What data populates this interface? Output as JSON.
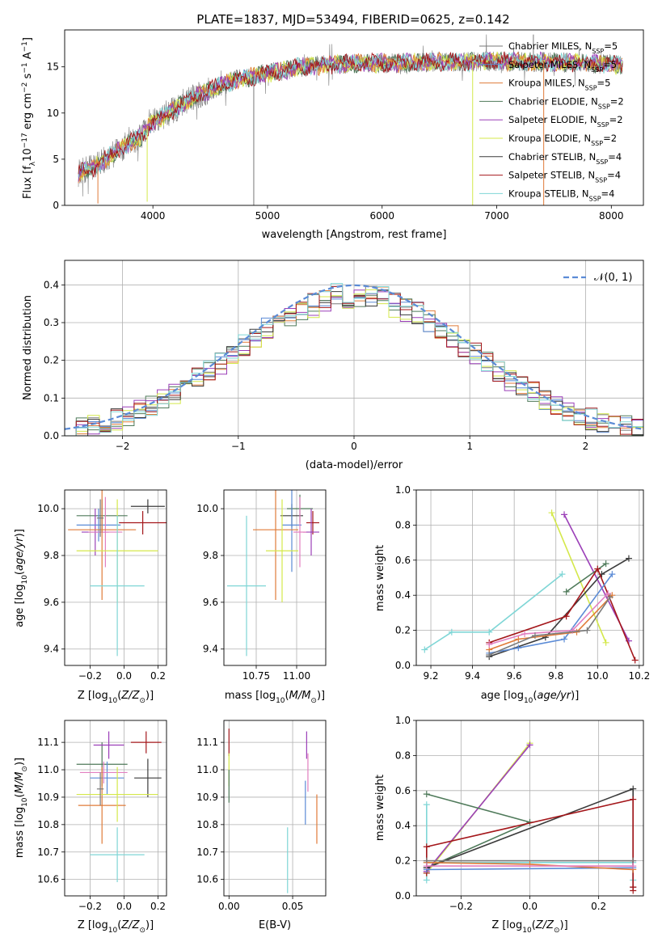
{
  "page_title": "PLATE=1837, MJD=53494, FIBERID=0625, z=0.142",
  "colors": {
    "c0": "#7a7a7a",
    "c1": "#5b8bd6",
    "c2": "#e07b39",
    "c3": "#4f7a5a",
    "c4": "#9b3fb8",
    "c5": "#d4e84a",
    "c6": "#3b3b3b",
    "c7": "#a4171b",
    "c8": "#7fd6d6",
    "c9": "#e27fc0",
    "norm": "#5b8bd6"
  },
  "legend_spectrum": [
    {
      "label": "Chabrier MILES, N",
      "sub": "SSP",
      "suffix": "=5",
      "color_key": "c0"
    },
    {
      "label": "Salpeter MILES, N",
      "sub": "SSP",
      "suffix": "=5",
      "color_key": "c1"
    },
    {
      "label": "Kroupa MILES, N",
      "sub": "SSP",
      "suffix": "=5",
      "color_key": "c2"
    },
    {
      "label": "Chabrier ELODIE, N",
      "sub": "SSP",
      "suffix": "=2",
      "color_key": "c3"
    },
    {
      "label": "Salpeter ELODIE, N",
      "sub": "SSP",
      "suffix": "=2",
      "color_key": "c4"
    },
    {
      "label": "Kroupa ELODIE, N",
      "sub": "SSP",
      "suffix": "=2",
      "color_key": "c5"
    },
    {
      "label": "Chabrier STELIB, N",
      "sub": "SSP",
      "suffix": "=4",
      "color_key": "c6"
    },
    {
      "label": "Salpeter STELIB, N",
      "sub": "SSP",
      "suffix": "=4",
      "color_key": "c7"
    },
    {
      "label": "Kroupa STELIB, N",
      "sub": "SSP",
      "suffix": "=4",
      "color_key": "c8"
    }
  ],
  "legend_hist": {
    "label": "𝒩(0, 1)"
  },
  "chart_data": [
    {
      "id": "spectrum",
      "type": "line",
      "xlabel": "wavelength [Angstrom, rest frame]",
      "ylabel": "Flux [f",
      "ylabel_parts": [
        "Flux [f",
        "λ",
        "10",
        "−17",
        " erg cm",
        "−2",
        " s",
        "−1",
        " A",
        "−1",
        "]"
      ],
      "xlim": [
        3230,
        8280
      ],
      "ylim": [
        0,
        19
      ],
      "xticks": [
        4000,
        5000,
        6000,
        7000,
        8000
      ],
      "yticks": [
        0,
        5,
        10,
        15
      ],
      "continuum": [
        [
          3350,
          3.5
        ],
        [
          3500,
          4.2
        ],
        [
          3700,
          6.0
        ],
        [
          3900,
          7.5
        ],
        [
          4000,
          9.0
        ],
        [
          4200,
          10.5
        ],
        [
          4400,
          12.0
        ],
        [
          4700,
          13.5
        ],
        [
          5000,
          14.3
        ],
        [
          5300,
          15.0
        ],
        [
          5600,
          15.3
        ],
        [
          6000,
          15.4
        ],
        [
          6500,
          15.5
        ],
        [
          7000,
          15.6
        ],
        [
          7500,
          15.5
        ],
        [
          8000,
          15.3
        ],
        [
          8100,
          15.2
        ]
      ],
      "spikes": [
        [
          3520,
          0.2
        ],
        [
          3950,
          0.4
        ],
        [
          4880,
          0.0
        ],
        [
          6790,
          0.0
        ],
        [
          7410,
          0.0
        ],
        [
          7320,
          18.5
        ]
      ]
    },
    {
      "id": "residuals",
      "type": "line",
      "xlabel": "(data-model)/error",
      "ylabel": "Normed distribution",
      "xlim": [
        -2.5,
        2.5
      ],
      "ylim": [
        0,
        0.465
      ],
      "xticks": [
        -2,
        -1,
        0,
        1,
        2
      ],
      "xticklabels": [
        "−2",
        "−1",
        "0",
        "1",
        "2"
      ],
      "yticks": [
        0.0,
        0.1,
        0.2,
        0.3,
        0.4
      ],
      "yticklabels": [
        "0.0",
        "0.1",
        "0.2",
        "0.3",
        "0.4"
      ],
      "bin_width": 0.1,
      "series_name": "𝒩(0, 1)"
    },
    {
      "id": "age_vs_Z",
      "type": "scatter",
      "xlabel": "Z [log10(Z/Z⊙)]",
      "ylabel": "age  [log10(age/yr)]",
      "xlim": [
        -0.35,
        0.25
      ],
      "ylim": [
        9.33,
        10.08
      ],
      "xticks": [
        -0.2,
        0.0,
        0.2
      ],
      "xticklabels": [
        "−0.2",
        "0.0",
        "0.2"
      ],
      "yticks": [
        9.4,
        9.6,
        9.8,
        10.0
      ],
      "yticklabels": [
        "9.4",
        "9.6",
        "9.8",
        "10.0"
      ],
      "points": [
        {
          "x": -0.13,
          "y": 9.97,
          "xerr": 0.15,
          "yerr": 0.07,
          "c": "c3"
        },
        {
          "x": 0.14,
          "y": 10.01,
          "xerr": 0.1,
          "yerr": 0.03,
          "c": "c6"
        },
        {
          "x": 0.11,
          "y": 9.94,
          "xerr": 0.14,
          "yerr": 0.05,
          "c": "c7"
        },
        {
          "x": -0.17,
          "y": 9.9,
          "xerr": 0.08,
          "yerr": 0.1,
          "c": "c4"
        },
        {
          "x": -0.15,
          "y": 9.93,
          "xerr": 0.13,
          "yerr": 0.07,
          "c": "c1"
        },
        {
          "x": -0.11,
          "y": 9.9,
          "xerr": 0.1,
          "yerr": 0.15,
          "c": "c9"
        },
        {
          "x": -0.13,
          "y": 9.91,
          "xerr": 0.2,
          "yerr": 0.3,
          "c": "c2"
        },
        {
          "x": -0.04,
          "y": 9.82,
          "xerr": 0.24,
          "yerr": 0.22,
          "c": "c5"
        },
        {
          "x": -0.04,
          "y": 9.67,
          "xerr": 0.16,
          "yerr": 0.3,
          "c": "c8"
        },
        {
          "x": -0.14,
          "y": 9.96,
          "xerr": 0.02,
          "yerr": 0.08,
          "c": "c0"
        }
      ]
    },
    {
      "id": "age_vs_mass",
      "type": "scatter",
      "xlabel": "mass [log10(M/M⊙)]",
      "xlim": [
        10.55,
        11.18
      ],
      "ylim": [
        9.33,
        10.08
      ],
      "xticks": [
        10.75,
        11.0
      ],
      "xticklabels": [
        "10.75",
        "11.00"
      ],
      "yticks": [
        9.4,
        9.6,
        9.8,
        10.0
      ],
      "yticklabels": [
        "9.4",
        "9.6",
        "9.8",
        "10.0"
      ],
      "points": [
        {
          "x": 11.02,
          "y": 10.0,
          "xerr": 0.08,
          "yerr": 0.06,
          "c": "c3"
        },
        {
          "x": 10.97,
          "y": 9.97,
          "xerr": 0.07,
          "yerr": 0.05,
          "c": "c6"
        },
        {
          "x": 11.1,
          "y": 9.94,
          "xerr": 0.04,
          "yerr": 0.05,
          "c": "c7"
        },
        {
          "x": 11.09,
          "y": 9.9,
          "xerr": 0.05,
          "yerr": 0.1,
          "c": "c4"
        },
        {
          "x": 10.97,
          "y": 9.93,
          "xerr": 0.06,
          "yerr": 0.2,
          "c": "c1"
        },
        {
          "x": 11.02,
          "y": 9.9,
          "xerr": 0.04,
          "yerr": 0.15,
          "c": "c9"
        },
        {
          "x": 10.87,
          "y": 9.91,
          "xerr": 0.14,
          "yerr": 0.3,
          "c": "c2"
        },
        {
          "x": 10.91,
          "y": 9.82,
          "xerr": 0.1,
          "yerr": 0.22,
          "c": "c5"
        },
        {
          "x": 10.69,
          "y": 9.67,
          "xerr": 0.12,
          "yerr": 0.3,
          "c": "c8"
        }
      ]
    },
    {
      "id": "massweight_vs_age",
      "type": "line",
      "xlabel": "age  [log10(age/yr)]",
      "ylabel": "mass weight",
      "xlim": [
        9.13,
        10.22
      ],
      "ylim": [
        0,
        1.0
      ],
      "xticks": [
        9.2,
        9.4,
        9.6,
        9.8,
        10.0,
        10.2
      ],
      "xticklabels": [
        "9.2",
        "9.4",
        "9.6",
        "9.8",
        "10.0",
        "10.2"
      ],
      "yticks": [
        0.0,
        0.2,
        0.4,
        0.6,
        0.8,
        1.0
      ],
      "yticklabels": [
        "0.0",
        "0.2",
        "0.4",
        "0.6",
        "0.8",
        "1.0"
      ],
      "series": [
        {
          "c": "c8",
          "x": [
            9.17,
            9.3,
            9.48,
            9.83
          ],
          "y": [
            0.09,
            0.19,
            0.19,
            0.52
          ]
        },
        {
          "c": "c5",
          "x": [
            9.78,
            10.04
          ],
          "y": [
            0.87,
            0.13
          ]
        },
        {
          "c": "c4",
          "x": [
            9.84,
            10.15
          ],
          "y": [
            0.86,
            0.14
          ]
        },
        {
          "c": "c3",
          "x": [
            9.85,
            10.04
          ],
          "y": [
            0.42,
            0.58
          ]
        },
        {
          "c": "c6",
          "x": [
            9.48,
            9.75,
            10.02,
            10.15
          ],
          "y": [
            0.05,
            0.16,
            0.52,
            0.61
          ]
        },
        {
          "c": "c7",
          "x": [
            9.48,
            9.85,
            10.0,
            10.18
          ],
          "y": [
            0.13,
            0.28,
            0.55,
            0.03
          ]
        },
        {
          "c": "c1",
          "x": [
            9.48,
            9.62,
            9.84,
            10.07
          ],
          "y": [
            0.07,
            0.1,
            0.15,
            0.52
          ]
        },
        {
          "c": "c2",
          "x": [
            9.48,
            9.62,
            9.9,
            10.07
          ],
          "y": [
            0.09,
            0.15,
            0.19,
            0.4
          ]
        },
        {
          "c": "c9",
          "x": [
            9.48,
            9.65,
            9.88,
            10.05
          ],
          "y": [
            0.12,
            0.18,
            0.2,
            0.41
          ]
        },
        {
          "c": "c0",
          "x": [
            9.48,
            9.7,
            9.95,
            10.06
          ],
          "y": [
            0.06,
            0.17,
            0.2,
            0.39
          ]
        }
      ]
    },
    {
      "id": "mass_vs_Z",
      "type": "scatter",
      "xlabel": "Z [log10(Z/Z⊙)]",
      "ylabel": "mass [log10(M/M⊙)]",
      "xlim": [
        -0.35,
        0.25
      ],
      "ylim": [
        10.54,
        11.18
      ],
      "xticks": [
        -0.2,
        0.0,
        0.2
      ],
      "xticklabels": [
        "−0.2",
        "0.0",
        "0.2"
      ],
      "yticks": [
        10.6,
        10.7,
        10.8,
        10.9,
        11.0,
        11.1
      ],
      "yticklabels": [
        "10.6",
        "10.7",
        "10.8",
        "10.9",
        "11.0",
        "11.1"
      ],
      "points": [
        {
          "x": -0.13,
          "y": 11.02,
          "xerr": 0.15,
          "yerr": 0.08,
          "c": "c3"
        },
        {
          "x": 0.14,
          "y": 10.97,
          "xerr": 0.08,
          "yerr": 0.07,
          "c": "c6"
        },
        {
          "x": 0.13,
          "y": 11.1,
          "xerr": 0.09,
          "yerr": 0.04,
          "c": "c7"
        },
        {
          "x": -0.09,
          "y": 11.09,
          "xerr": 0.09,
          "yerr": 0.05,
          "c": "c4"
        },
        {
          "x": -0.1,
          "y": 10.97,
          "xerr": 0.1,
          "yerr": 0.06,
          "c": "c1"
        },
        {
          "x": -0.12,
          "y": 10.99,
          "xerr": 0.14,
          "yerr": 0.04,
          "c": "c9"
        },
        {
          "x": -0.13,
          "y": 10.87,
          "xerr": 0.14,
          "yerr": 0.14,
          "c": "c2"
        },
        {
          "x": -0.04,
          "y": 10.91,
          "xerr": 0.24,
          "yerr": 0.1,
          "c": "c5"
        },
        {
          "x": -0.04,
          "y": 10.69,
          "xerr": 0.16,
          "yerr": 0.1,
          "c": "c8"
        },
        {
          "x": -0.14,
          "y": 10.93,
          "xerr": 0.02,
          "yerr": 0.06,
          "c": "c0"
        }
      ]
    },
    {
      "id": "mass_vs_EBV",
      "type": "scatter",
      "xlabel": "E(B-V)",
      "xlim": [
        -0.004,
        0.076
      ],
      "ylim": [
        10.54,
        11.18
      ],
      "xticks": [
        0.0,
        0.05
      ],
      "xticklabels": [
        "0.00",
        "0.05"
      ],
      "yticks": [
        10.6,
        10.7,
        10.8,
        10.9,
        11.0,
        11.1
      ],
      "yticklabels": [
        "10.6",
        "10.7",
        "10.8",
        "10.9",
        "11.0",
        "11.1"
      ],
      "points": [
        {
          "x": 0.0,
          "y": 11.1,
          "xerr": 0.0,
          "yerr": 0.05,
          "c": "c7"
        },
        {
          "x": 0.0,
          "y": 11.0,
          "xerr": 0.0,
          "yerr": 0.06,
          "c": "c5"
        },
        {
          "x": 0.0,
          "y": 10.94,
          "xerr": 0.0,
          "yerr": 0.06,
          "c": "c3"
        },
        {
          "x": 0.061,
          "y": 11.09,
          "xerr": 0.0,
          "yerr": 0.05,
          "c": "c4"
        },
        {
          "x": 0.062,
          "y": 10.99,
          "xerr": 0.0,
          "yerr": 0.07,
          "c": "c9"
        },
        {
          "x": 0.06,
          "y": 10.88,
          "xerr": 0.0,
          "yerr": 0.08,
          "c": "c1"
        },
        {
          "x": 0.069,
          "y": 10.82,
          "xerr": 0.0,
          "yerr": 0.09,
          "c": "c2"
        },
        {
          "x": 0.046,
          "y": 10.67,
          "xerr": 0.0,
          "yerr": 0.12,
          "c": "c8"
        }
      ]
    },
    {
      "id": "massweight_vs_Z",
      "type": "line",
      "xlabel": "Z [log10(Z/Z⊙)]",
      "ylabel": "mass weight",
      "xlim": [
        -0.33,
        0.33
      ],
      "ylim": [
        0,
        1.0
      ],
      "xticks": [
        -0.2,
        0.0,
        0.2
      ],
      "xticklabels": [
        "−0.2",
        "0.0",
        "0.2"
      ],
      "yticks": [
        0.0,
        0.2,
        0.4,
        0.6,
        0.8,
        1.0
      ],
      "yticklabels": [
        "0.0",
        "0.2",
        "0.4",
        "0.6",
        "0.8",
        "1.0"
      ],
      "series": [
        {
          "c": "c8",
          "x": [
            -0.3,
            -0.3,
            -0.3,
            0.3,
            0.3
          ],
          "y": [
            0.09,
            0.52,
            0.19,
            0.19,
            0.09
          ]
        },
        {
          "c": "c5",
          "x": [
            -0.3,
            0.0
          ],
          "y": [
            0.13,
            0.87
          ]
        },
        {
          "c": "c4",
          "x": [
            -0.3,
            0.0
          ],
          "y": [
            0.14,
            0.86
          ]
        },
        {
          "c": "c3",
          "x": [
            -0.3,
            0.0,
            -0.3
          ],
          "y": [
            0.58,
            0.42,
            0.16
          ]
        },
        {
          "c": "c6",
          "x": [
            -0.3,
            0.3,
            0.3
          ],
          "y": [
            0.16,
            0.61,
            0.05
          ]
        },
        {
          "c": "c7",
          "x": [
            -0.3,
            -0.3,
            0.3,
            0.3,
            0.3
          ],
          "y": [
            0.13,
            0.28,
            0.55,
            0.03,
            0.05
          ]
        },
        {
          "c": "c1",
          "x": [
            -0.3,
            0.3
          ],
          "y": [
            0.15,
            0.16
          ]
        },
        {
          "c": "c2",
          "x": [
            -0.3,
            0.0,
            0.3
          ],
          "y": [
            0.19,
            0.18,
            0.15
          ]
        },
        {
          "c": "c0",
          "x": [
            -0.3,
            0.3
          ],
          "y": [
            0.2,
            0.2
          ]
        },
        {
          "c": "c9",
          "x": [
            -0.3,
            0.3
          ],
          "y": [
            0.17,
            0.17
          ]
        }
      ]
    }
  ]
}
